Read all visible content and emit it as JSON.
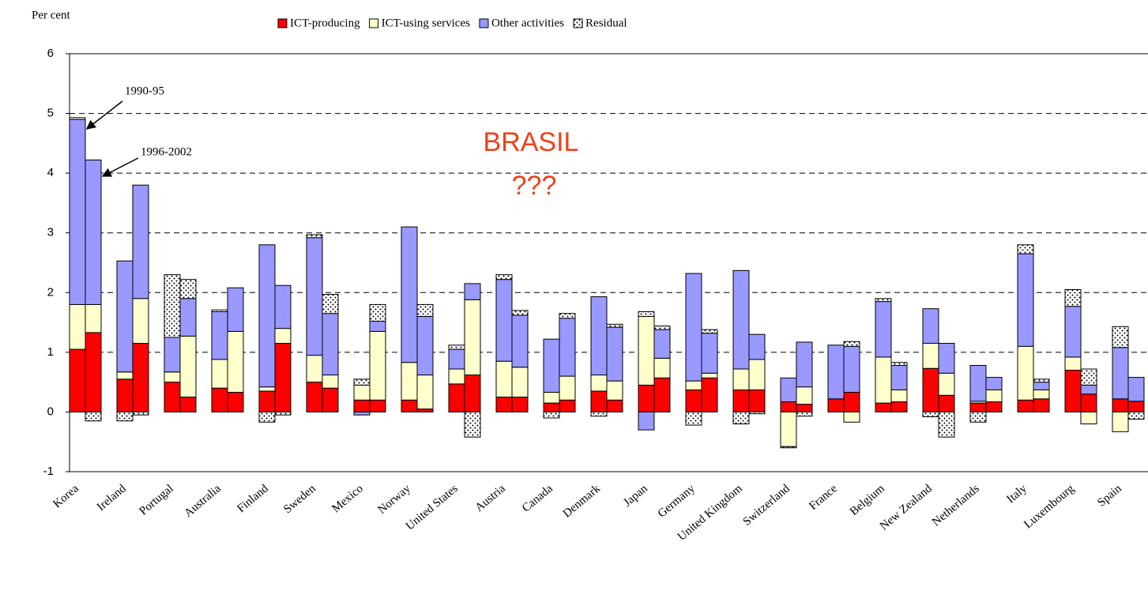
{
  "chart_data": {
    "type": "bar",
    "stacked": true,
    "y_label": "Per cent",
    "periods": [
      "1990-95",
      "1996-2002"
    ],
    "annotations": [
      "BRASIL",
      "???"
    ],
    "categories": [
      "Korea",
      "Ireland",
      "Portugal",
      "Australia",
      "Finland",
      "Sweden",
      "Mexico",
      "Norway",
      "United States",
      "Austria",
      "Canada",
      "Denmark",
      "Japan",
      "Germany",
      "United Kingdom",
      "Switzerland",
      "France",
      "Belgium",
      "New Zealand",
      "Netherlands",
      "Italy",
      "Luxembourg",
      "Spain"
    ],
    "series": [
      {
        "name": "ICT-producing",
        "color": "#ff0000",
        "values": [
          [
            1.05,
            1.33
          ],
          [
            0.55,
            1.15
          ],
          [
            0.5,
            0.25
          ],
          [
            0.4,
            0.33
          ],
          [
            0.35,
            1.15
          ],
          [
            0.5,
            0.4
          ],
          [
            0.2,
            0.2
          ],
          [
            0.2,
            0.05
          ],
          [
            0.47,
            0.62
          ],
          [
            0.25,
            0.25
          ],
          [
            0.15,
            0.2
          ],
          [
            0.35,
            0.2
          ],
          [
            0.45,
            0.57
          ],
          [
            0.37,
            0.57
          ],
          [
            0.37,
            0.37
          ],
          [
            0.17,
            0.13
          ],
          [
            0.22,
            0.33
          ],
          [
            0.15,
            0.17
          ],
          [
            0.73,
            0.28
          ],
          [
            0.15,
            0.17
          ],
          [
            0.2,
            0.22
          ],
          [
            0.7,
            0.3
          ],
          [
            0.22,
            0.18
          ]
        ]
      },
      {
        "name": "ICT-using services",
        "color": "#ffffcc",
        "values": [
          [
            0.75,
            0.47
          ],
          [
            0.12,
            0.75
          ],
          [
            0.17,
            1.02
          ],
          [
            0.48,
            1.02
          ],
          [
            0.07,
            0.25
          ],
          [
            0.45,
            0.22
          ],
          [
            0.25,
            1.15
          ],
          [
            0.63,
            0.57
          ],
          [
            0.25,
            1.26
          ],
          [
            0.6,
            0.5
          ],
          [
            0.18,
            0.4
          ],
          [
            0.27,
            0.32
          ],
          [
            1.15,
            0.33
          ],
          [
            0.15,
            0.08
          ],
          [
            0.35,
            0.51
          ],
          [
            -0.58,
            0.29
          ],
          [
            0,
            -0.17
          ],
          [
            0.77,
            0.2
          ],
          [
            0.42,
            0.37
          ],
          [
            0.03,
            0.2
          ],
          [
            0.9,
            0.15
          ],
          [
            0.22,
            -0.2
          ],
          [
            -0.33,
            0
          ]
        ]
      },
      {
        "name": "Other activities",
        "color": "#9999ff",
        "values": [
          [
            3.1,
            2.42
          ],
          [
            1.86,
            1.9
          ],
          [
            0.58,
            0.63
          ],
          [
            0.8,
            0.73
          ],
          [
            2.38,
            0.72
          ],
          [
            1.97,
            1.03
          ],
          [
            -0.05,
            0.17
          ],
          [
            2.27,
            0.98
          ],
          [
            0.33,
            0.27
          ],
          [
            1.37,
            0.87
          ],
          [
            0.89,
            0.97
          ],
          [
            1.31,
            0.9
          ],
          [
            -0.3,
            0.48
          ],
          [
            1.8,
            0.67
          ],
          [
            1.65,
            0.42
          ],
          [
            0.4,
            0.75
          ],
          [
            0.9,
            0.77
          ],
          [
            0.93,
            0.41
          ],
          [
            0.58,
            0.5
          ],
          [
            0.6,
            0.21
          ],
          [
            1.55,
            0.13
          ],
          [
            0.85,
            0.15
          ],
          [
            0.86,
            0.4
          ]
        ]
      },
      {
        "name": "Residual",
        "color": "#ffffff",
        "pattern": "dots",
        "values": [
          [
            0.03,
            -0.15
          ],
          [
            -0.15,
            -0.05
          ],
          [
            1.05,
            0.32
          ],
          [
            0.03,
            0
          ],
          [
            -0.17,
            -0.05
          ],
          [
            0.05,
            0.32
          ],
          [
            0.1,
            0.28
          ],
          [
            0,
            0.2
          ],
          [
            0.07,
            -0.42
          ],
          [
            0.08,
            0.08
          ],
          [
            -0.1,
            0.08
          ],
          [
            -0.07,
            0.05
          ],
          [
            0.08,
            0.06
          ],
          [
            -0.22,
            0.06
          ],
          [
            -0.2,
            -0.03
          ],
          [
            -0.02,
            -0.07
          ],
          [
            0,
            0.08
          ],
          [
            0.05,
            0.05
          ],
          [
            -0.08,
            -0.42
          ],
          [
            -0.17,
            0
          ],
          [
            0.15,
            0.05
          ],
          [
            0.28,
            0.27
          ],
          [
            0.35,
            -0.12
          ]
        ]
      }
    ],
    "ylim": [
      -1,
      6
    ],
    "yticks": [
      -1,
      0,
      1,
      2,
      3,
      4,
      5,
      6
    ],
    "grid": true,
    "grid_style": "dashed",
    "legend": "top"
  }
}
